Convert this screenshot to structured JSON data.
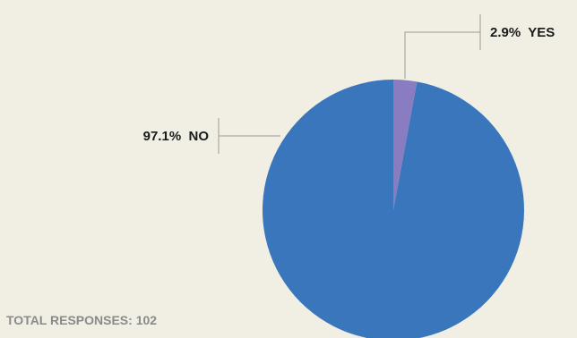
{
  "chart_data": {
    "type": "pie",
    "slices": [
      {
        "label": "NO",
        "value": 97.1,
        "display": "97.1%  NO",
        "color": "#3a76bc"
      },
      {
        "label": "YES",
        "value": 2.9,
        "display": "2.9%  YES",
        "color": "#8a7cc0"
      }
    ],
    "start_angle_deg": 0,
    "direction": "clockwise",
    "footer": "TOTAL RESPONSES: 102"
  },
  "colors": {
    "background": "#f1efe4",
    "leader_line": "#9a9a9a",
    "label_text": "#1a1a1a",
    "footer_text": "#8a8a8a"
  }
}
